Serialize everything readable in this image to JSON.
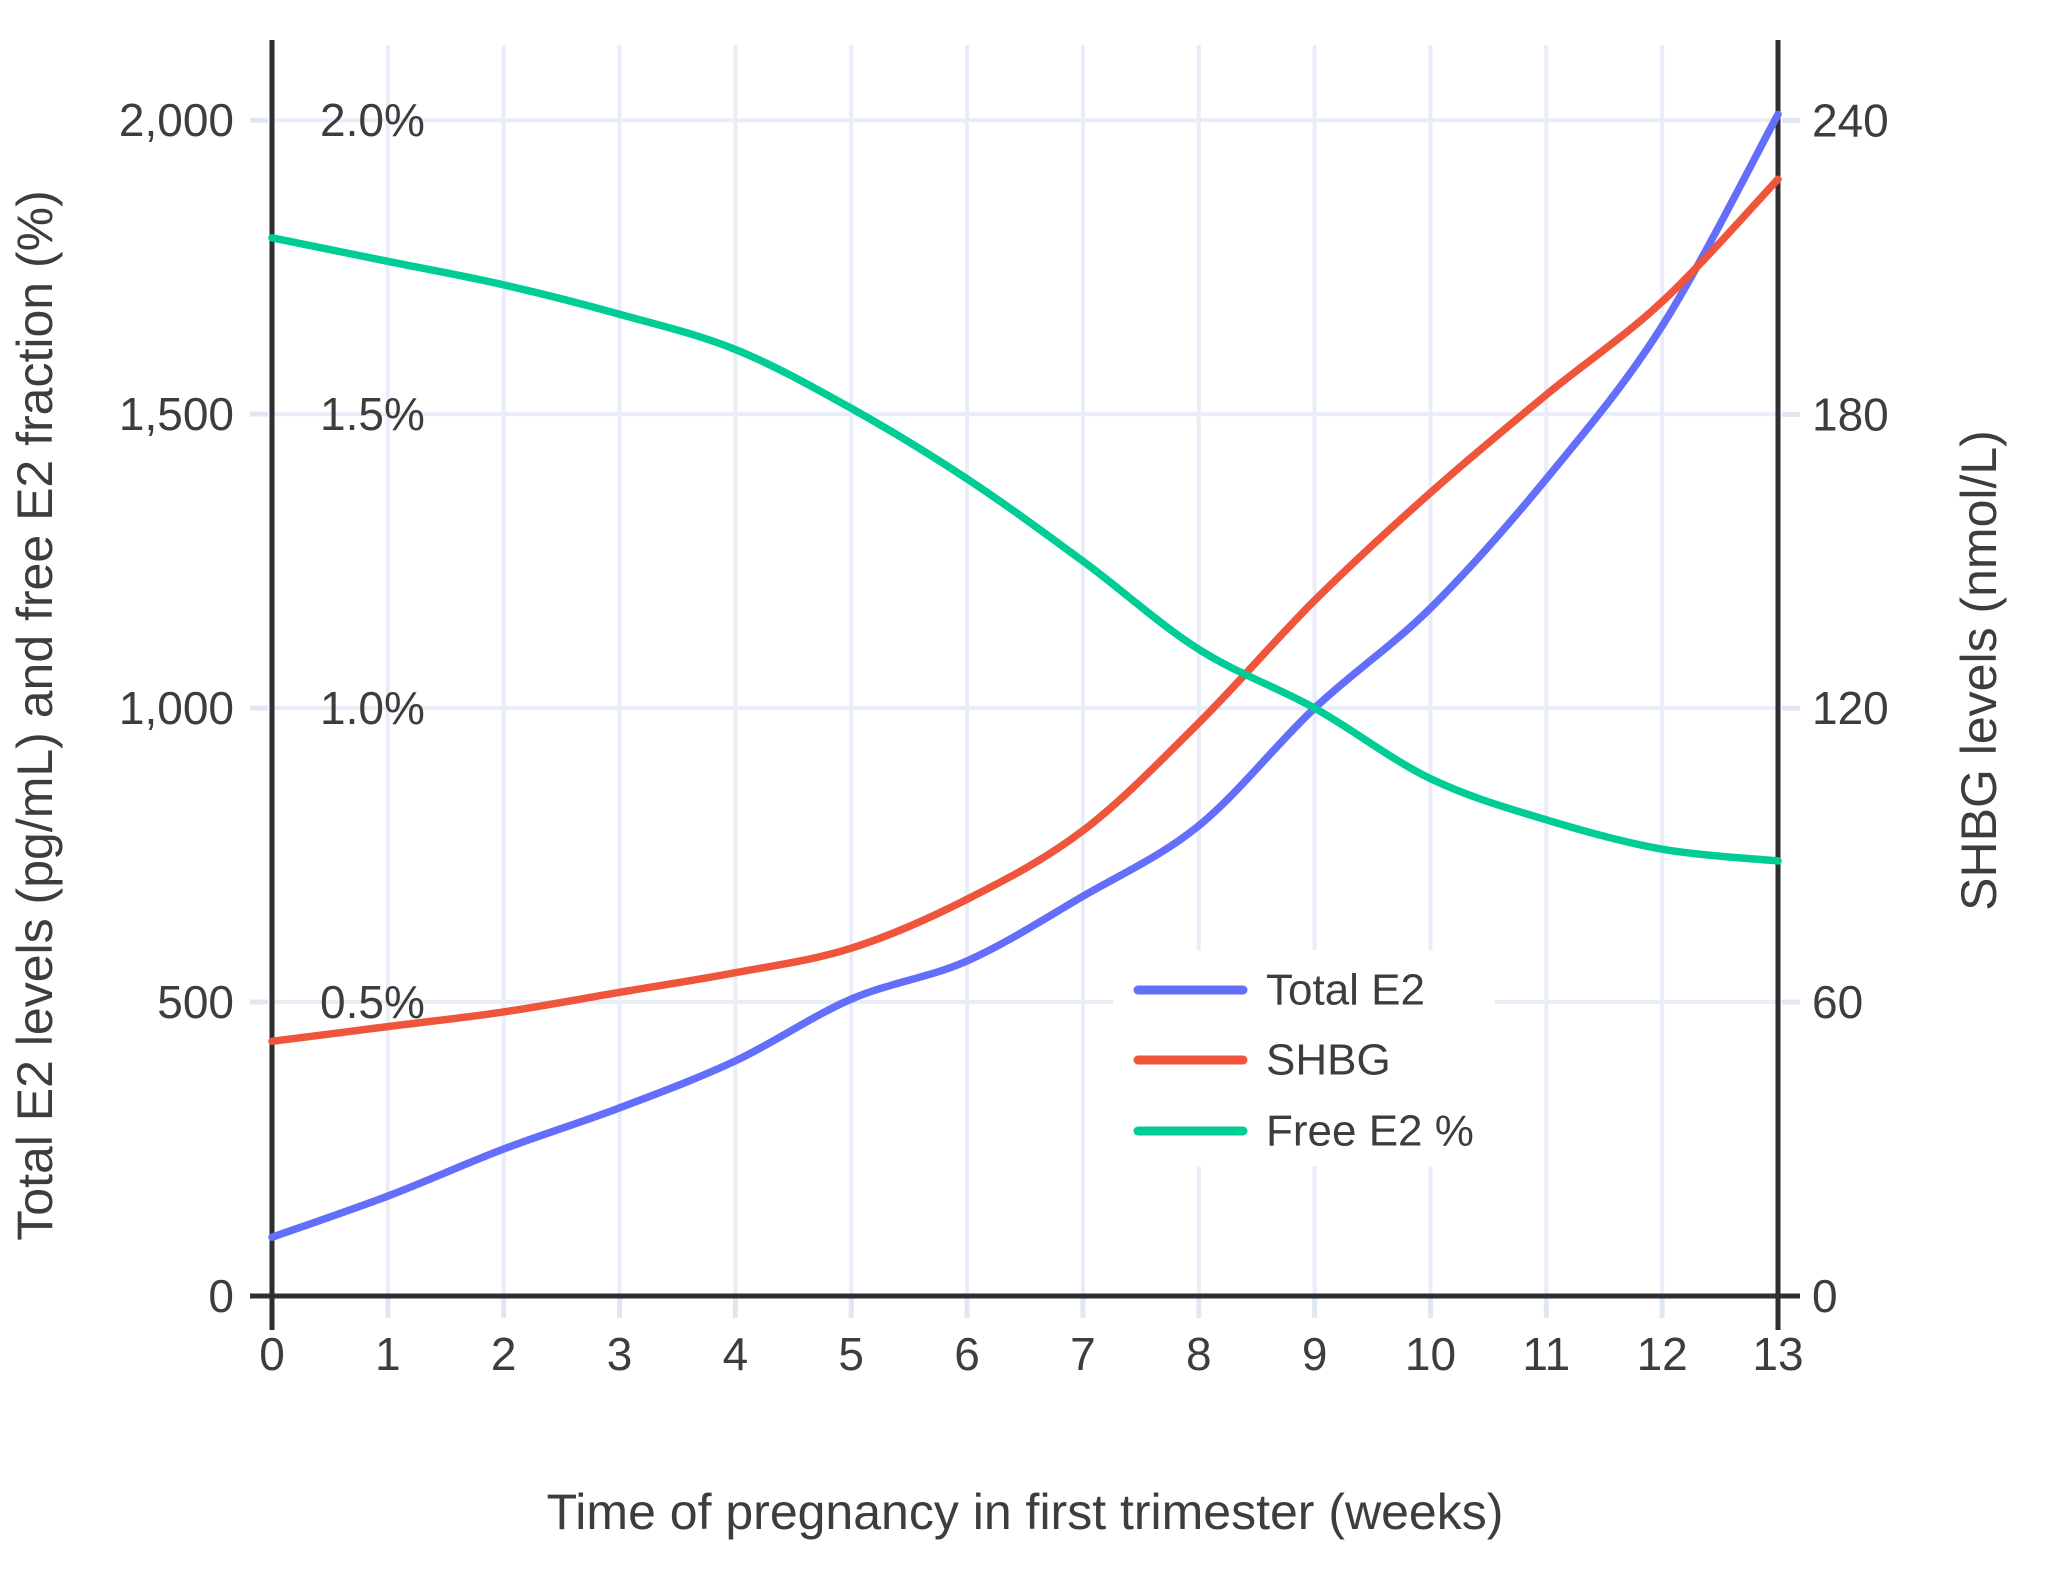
{
  "figure": {
    "background": "#ffffff",
    "axis_line_color": "#2e2e2e",
    "grid_color": "#e8edf8",
    "tick_color": "#dfe7f5",
    "text_color": "#3d3d3d",
    "curve_width": 7.5
  },
  "chart_data": {
    "type": "line",
    "title": "",
    "xlabel": "Time of pregnancy in first trimester (weeks)",
    "ylabel_left": "Total E2 levels (pg/mL) and free E2 fraction (%)",
    "ylabel_right": "SHBG levels (nmol/L)",
    "xlim": [
      0,
      13
    ],
    "ylim_left": [
      0,
      2128
    ],
    "ylim_right": [
      0,
      255.4
    ],
    "grid": true,
    "x": [
      0,
      1,
      2,
      3,
      4,
      5,
      6,
      7,
      8,
      9,
      10,
      11,
      12,
      13
    ],
    "x_tick_labels": [
      "0",
      "1",
      "2",
      "3",
      "4",
      "5",
      "6",
      "7",
      "8",
      "9",
      "10",
      "11",
      "12",
      "13"
    ],
    "y_left_ticks": [
      {
        "value": 0,
        "label": "0"
      },
      {
        "value": 500,
        "label": "500"
      },
      {
        "value": 1000,
        "label": "1,000"
      },
      {
        "value": 1500,
        "label": "1,500"
      },
      {
        "value": 2000,
        "label": "2,000"
      }
    ],
    "y_pct_labels": [
      {
        "value": 500,
        "label": "0.5%"
      },
      {
        "value": 1000,
        "label": "1.0%"
      },
      {
        "value": 1500,
        "label": "1.5%"
      },
      {
        "value": 2000,
        "label": "2.0%"
      }
    ],
    "y_right_ticks": [
      {
        "value": 0,
        "label": "0"
      },
      {
        "value": 60,
        "label": "60"
      },
      {
        "value": 120,
        "label": "120"
      },
      {
        "value": 180,
        "label": "180"
      },
      {
        "value": 240,
        "label": "240"
      }
    ],
    "series": [
      {
        "name": "Total E2",
        "color": "#636efa",
        "axis": "left",
        "units": "pg/mL",
        "values": [
          100,
          170,
          250,
          320,
          400,
          505,
          570,
          680,
          800,
          1000,
          1170,
          1390,
          1650,
          2010
        ]
      },
      {
        "name": "SHBG",
        "color": "#ef553b",
        "axis": "right",
        "units": "nmol/L",
        "values": [
          52,
          55,
          58,
          62,
          66,
          71,
          81,
          95,
          117,
          142,
          164,
          184,
          203,
          228
        ]
      },
      {
        "name": "Free E2 %",
        "color": "#00cc96",
        "axis": "percent",
        "units": "%",
        "values": [
          1.8,
          1.76,
          1.72,
          1.67,
          1.61,
          1.51,
          1.39,
          1.25,
          1.1,
          1.0,
          0.88,
          0.81,
          0.76,
          0.74
        ]
      }
    ],
    "legend": {
      "position": "inside-right",
      "items": [
        "Total E2",
        "SHBG",
        "Free E2 %"
      ]
    }
  }
}
